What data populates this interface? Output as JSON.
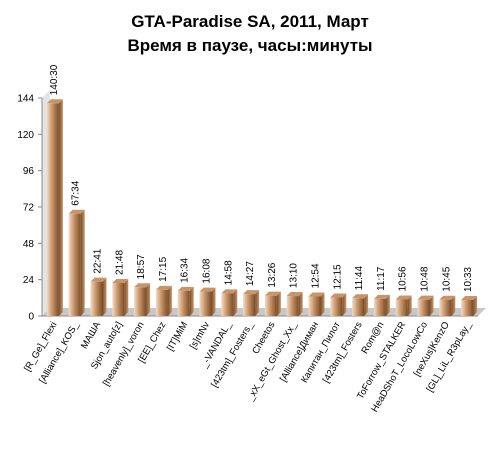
{
  "title_line1": "GTA-Paradise SA, 2011, Март",
  "title_line2": "Время в паузе, часы:минуты",
  "chart_data": {
    "type": "bar",
    "title": "GTA-Paradise SA, 2011, Март",
    "subtitle": "Время в паузе, часы:минуты",
    "categories": [
      "[R_Ge]_Flexi",
      "[Alliance]_KOS_",
      "МАША",
      "Sjon_auto[z]",
      "[heavenly]_voron",
      "[EE]_Chez",
      "[IT]MiM",
      "[s]mNv",
      "_-VANDAL_",
      "[423tm]_Fosters_",
      "Cheetos",
      "_xX_eGt_Ghost_Xx_",
      "[Alliance]Диман",
      "Капитан_Пилот",
      "[423tm]_Fosters",
      "Rom@n",
      "ToForrow_STALKER",
      "HeaDShoT_LocoLowCo",
      "[neXus]KenzO",
      "[GL]_LiL_R3pLay_"
    ],
    "labels": [
      "140:30",
      "67:34",
      "22:41",
      "21:48",
      "18:57",
      "17:15",
      "16:34",
      "16:08",
      "14:58",
      "14:27",
      "13:26",
      "13:10",
      "12:54",
      "12:15",
      "11:44",
      "11:17",
      "10:56",
      "10:48",
      "10:45",
      "10:33"
    ],
    "values": [
      140.5,
      67.57,
      22.68,
      21.8,
      18.95,
      17.25,
      16.57,
      16.13,
      14.97,
      14.45,
      13.43,
      13.17,
      12.9,
      12.25,
      11.73,
      11.28,
      10.93,
      10.8,
      10.75,
      10.55
    ],
    "yticks": [
      0,
      24,
      48,
      72,
      96,
      120,
      144
    ],
    "ylim": [
      0,
      144
    ],
    "grid": false,
    "legend": "none",
    "colors": {
      "bar_light": "#f2dcc6",
      "bar_mid": "#c89468",
      "bar_dark": "#7a4e2a",
      "floor": "#c8c8c8",
      "wall": "#e4e4e4"
    }
  }
}
